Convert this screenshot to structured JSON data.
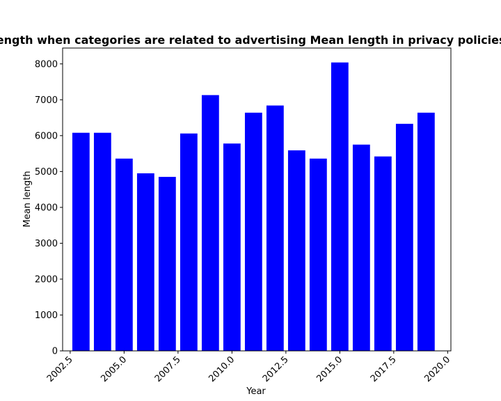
{
  "chart_data": {
    "type": "bar",
    "title": "Mean length when categories are related to advertising Mean length in privacy policies by Year",
    "xlabel": "Year",
    "ylabel": "Mean length",
    "x": [
      2003,
      2004,
      2005,
      2006,
      2007,
      2008,
      2009,
      2010,
      2011,
      2012,
      2013,
      2014,
      2015,
      2016,
      2017,
      2018,
      2019
    ],
    "values": [
      6080,
      6080,
      5360,
      4950,
      4850,
      6060,
      7130,
      5780,
      6640,
      6840,
      5590,
      5360,
      8040,
      5750,
      5420,
      6330,
      6640
    ],
    "bar_color": "#0000ff",
    "xlim": [
      2002.15,
      2020.15
    ],
    "ylim": [
      0,
      8442
    ],
    "xticks": [
      2002.5,
      2005.0,
      2007.5,
      2010.0,
      2012.5,
      2015.0,
      2017.5,
      2020.0
    ],
    "xtick_labels": [
      "2002.5",
      "2005.0",
      "2007.5",
      "2010.0",
      "2012.5",
      "2015.0",
      "2017.5",
      "2020.0"
    ],
    "yticks": [
      0,
      1000,
      2000,
      3000,
      4000,
      5000,
      6000,
      7000,
      8000
    ],
    "ytick_labels": [
      "0",
      "1000",
      "2000",
      "3000",
      "4000",
      "5000",
      "6000",
      "7000",
      "8000"
    ],
    "grid": false,
    "legend": "none"
  }
}
